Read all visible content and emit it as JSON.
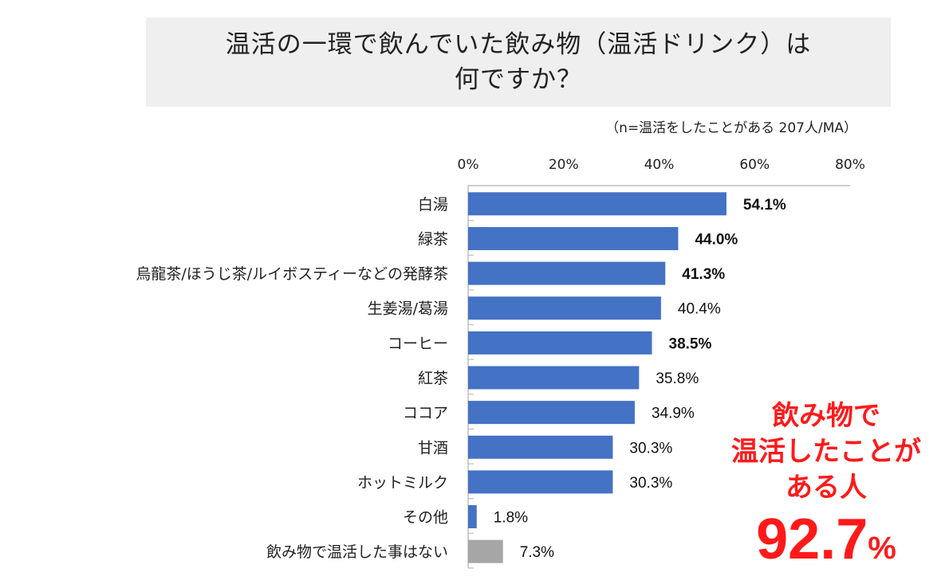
{
  "title": "温活の一環で飲んでいた飲み物（温活ドリンク）は\n何ですか？",
  "note": "（n=温活をしたことがある 207人/MA）",
  "chart_data": {
    "type": "bar",
    "orientation": "horizontal",
    "title": "温活の一環で飲んでいた飲み物（温活ドリンク）は何ですか？",
    "categories": [
      "白湯",
      "緑茶",
      "烏龍茶/ほうじ茶/ルイボスティーなどの発酵茶",
      "生姜湯/葛湯",
      "コーヒー",
      "紅茶",
      "ココア",
      "甘酒",
      "ホットミルク",
      "その他",
      "飲み物で温活した事はない"
    ],
    "values": [
      54.1,
      44.0,
      41.3,
      40.4,
      38.5,
      35.8,
      34.9,
      30.3,
      30.3,
      1.8,
      7.3
    ],
    "value_labels": [
      "54.1%",
      "44.0%",
      "41.3%",
      "40.4%",
      "38.5%",
      "35.8%",
      "34.9%",
      "30.3%",
      "30.3%",
      "1.8%",
      "7.3%"
    ],
    "bold_labels": [
      true,
      true,
      true,
      false,
      true,
      false,
      false,
      false,
      false,
      false,
      false
    ],
    "bar_colors": [
      "#4472c4",
      "#4472c4",
      "#4472c4",
      "#4472c4",
      "#4472c4",
      "#4472c4",
      "#4472c4",
      "#4472c4",
      "#4472c4",
      "#4472c4",
      "#a6a6a6"
    ],
    "xlim": [
      0,
      80
    ],
    "xticks": [
      "0%",
      "20%",
      "40%",
      "60%",
      "80%"
    ],
    "xtick_values": [
      0,
      20,
      40,
      60,
      80
    ],
    "axis_position": "top",
    "grid": false
  },
  "callout": {
    "text": "飲み物で\n温活したことが\nある人",
    "value": "92.7",
    "unit": "%",
    "color": "#ff1a1a"
  }
}
